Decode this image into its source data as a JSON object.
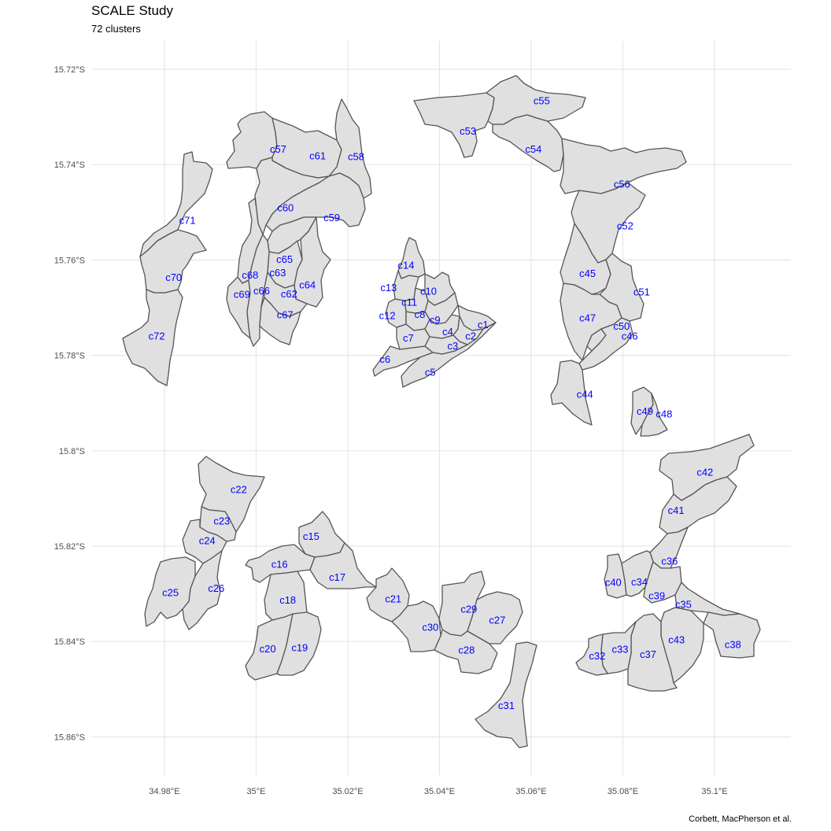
{
  "title": "SCALE Study",
  "subtitle": "72 clusters",
  "caption": "Corbett, MacPherson et al.",
  "map": {
    "fill_color": "#e0e0e0",
    "border_color": "#555555",
    "label_color": "#0000ff",
    "grid": true,
    "x_ticks": [
      "34.98°E",
      "35°E",
      "35.02°E",
      "35.04°E",
      "35.06°E",
      "35.08°E",
      "35.1°E"
    ],
    "y_ticks": [
      "15.72°S",
      "15.74°S",
      "15.76°S",
      "15.78°S",
      "15.8°S",
      "15.82°S",
      "15.84°S",
      "15.86°S"
    ],
    "clusters": [
      {
        "id": "c1",
        "lon": 35.0495,
        "lat": -15.7737
      },
      {
        "id": "c2",
        "lon": 35.0468,
        "lat": -15.7761
      },
      {
        "id": "c3",
        "lon": 35.0429,
        "lat": -15.7782
      },
      {
        "id": "c4",
        "lon": 35.0418,
        "lat": -15.7752
      },
      {
        "id": "c5",
        "lon": 35.038,
        "lat": -15.7837
      },
      {
        "id": "c6",
        "lon": 35.0281,
        "lat": -15.781
      },
      {
        "id": "c7",
        "lon": 35.0332,
        "lat": -15.7765
      },
      {
        "id": "c8",
        "lon": 35.0357,
        "lat": -15.7716
      },
      {
        "id": "c9",
        "lon": 35.039,
        "lat": -15.7727
      },
      {
        "id": "c10",
        "lon": 35.0376,
        "lat": -15.7667
      },
      {
        "id": "c11",
        "lon": 35.0334,
        "lat": -15.769
      },
      {
        "id": "c12",
        "lon": 35.0286,
        "lat": -15.7718
      },
      {
        "id": "c13",
        "lon": 35.0289,
        "lat": -15.766
      },
      {
        "id": "c14",
        "lon": 35.0327,
        "lat": -15.7613
      },
      {
        "id": "c15",
        "lon": 35.012,
        "lat": -15.8181
      },
      {
        "id": "c16",
        "lon": 35.0051,
        "lat": -15.824
      },
      {
        "id": "c17",
        "lon": 35.0177,
        "lat": -15.8267
      },
      {
        "id": "c18",
        "lon": 35.0069,
        "lat": -15.8315
      },
      {
        "id": "c19",
        "lon": 35.0095,
        "lat": -15.8415
      },
      {
        "id": "c20",
        "lon": 35.0025,
        "lat": -15.8417
      },
      {
        "id": "c21",
        "lon": 35.0299,
        "lat": -15.8312
      },
      {
        "id": "c22",
        "lon": 34.9962,
        "lat": -15.8083
      },
      {
        "id": "c23",
        "lon": 34.9925,
        "lat": -15.8149
      },
      {
        "id": "c24",
        "lon": 34.9893,
        "lat": -15.819
      },
      {
        "id": "c25",
        "lon": 34.9813,
        "lat": -15.8299
      },
      {
        "id": "c26",
        "lon": 34.9913,
        "lat": -15.829
      },
      {
        "id": "c27",
        "lon": 35.0526,
        "lat": -15.8357
      },
      {
        "id": "c28",
        "lon": 35.0459,
        "lat": -15.842
      },
      {
        "id": "c29",
        "lon": 35.0464,
        "lat": -15.8334
      },
      {
        "id": "c30",
        "lon": 35.038,
        "lat": -15.8372
      },
      {
        "id": "c31",
        "lon": 35.0546,
        "lat": -15.8536
      },
      {
        "id": "c32",
        "lon": 35.0744,
        "lat": -15.8432
      },
      {
        "id": "c33",
        "lon": 35.0794,
        "lat": -15.8418
      },
      {
        "id": "c34",
        "lon": 35.0836,
        "lat": -15.8277
      },
      {
        "id": "c35",
        "lon": 35.0932,
        "lat": -15.8324
      },
      {
        "id": "c36",
        "lon": 35.0902,
        "lat": -15.8233
      },
      {
        "id": "c37",
        "lon": 35.0855,
        "lat": -15.8429
      },
      {
        "id": "c38",
        "lon": 35.104,
        "lat": -15.8408
      },
      {
        "id": "c39",
        "lon": 35.0874,
        "lat": -15.8306
      },
      {
        "id": "c40",
        "lon": 35.0779,
        "lat": -15.8278
      },
      {
        "id": "c41",
        "lon": 35.0916,
        "lat": -15.8127
      },
      {
        "id": "c42",
        "lon": 35.0979,
        "lat": -15.8047
      },
      {
        "id": "c43",
        "lon": 35.0917,
        "lat": -15.8398
      },
      {
        "id": "c44",
        "lon": 35.0717,
        "lat": -15.7883
      },
      {
        "id": "c45",
        "lon": 35.0723,
        "lat": -15.763
      },
      {
        "id": "c46",
        "lon": 35.0815,
        "lat": -15.7761
      },
      {
        "id": "c47",
        "lon": 35.0723,
        "lat": -15.7723
      },
      {
        "id": "c48",
        "lon": 35.089,
        "lat": -15.7925
      },
      {
        "id": "c49",
        "lon": 35.0848,
        "lat": -15.7919
      },
      {
        "id": "c50",
        "lon": 35.0797,
        "lat": -15.7741
      },
      {
        "id": "c51",
        "lon": 35.0841,
        "lat": -15.7669
      },
      {
        "id": "c52",
        "lon": 35.0805,
        "lat": -15.753
      },
      {
        "id": "c53",
        "lon": 35.0462,
        "lat": -15.7331
      },
      {
        "id": "c54",
        "lon": 35.0605,
        "lat": -15.7369
      },
      {
        "id": "c55",
        "lon": 35.0623,
        "lat": -15.7268
      },
      {
        "id": "c56",
        "lon": 35.0798,
        "lat": -15.7443
      },
      {
        "id": "c57",
        "lon": 35.0048,
        "lat": -15.7369
      },
      {
        "id": "c58",
        "lon": 35.0218,
        "lat": -15.7385
      },
      {
        "id": "c59",
        "lon": 35.0165,
        "lat": -15.7513
      },
      {
        "id": "c60",
        "lon": 35.0064,
        "lat": -15.7492
      },
      {
        "id": "c61",
        "lon": 35.0134,
        "lat": -15.7383
      },
      {
        "id": "c62",
        "lon": 35.0072,
        "lat": -15.7673
      },
      {
        "id": "c63",
        "lon": 35.0047,
        "lat": -15.7628
      },
      {
        "id": "c64",
        "lon": 35.0112,
        "lat": -15.7654
      },
      {
        "id": "c65",
        "lon": 35.0062,
        "lat": -15.76
      },
      {
        "id": "c66",
        "lon": 35.0012,
        "lat": -15.7666
      },
      {
        "id": "c67",
        "lon": 35.0063,
        "lat": -15.7717
      },
      {
        "id": "c68",
        "lon": 34.9987,
        "lat": -15.7633
      },
      {
        "id": "c69",
        "lon": 34.9969,
        "lat": -15.7674
      },
      {
        "id": "c70",
        "lon": 34.982,
        "lat": -15.7638
      },
      {
        "id": "c71",
        "lon": 34.985,
        "lat": -15.7519
      },
      {
        "id": "c72",
        "lon": 34.9783,
        "lat": -15.7761
      }
    ]
  }
}
